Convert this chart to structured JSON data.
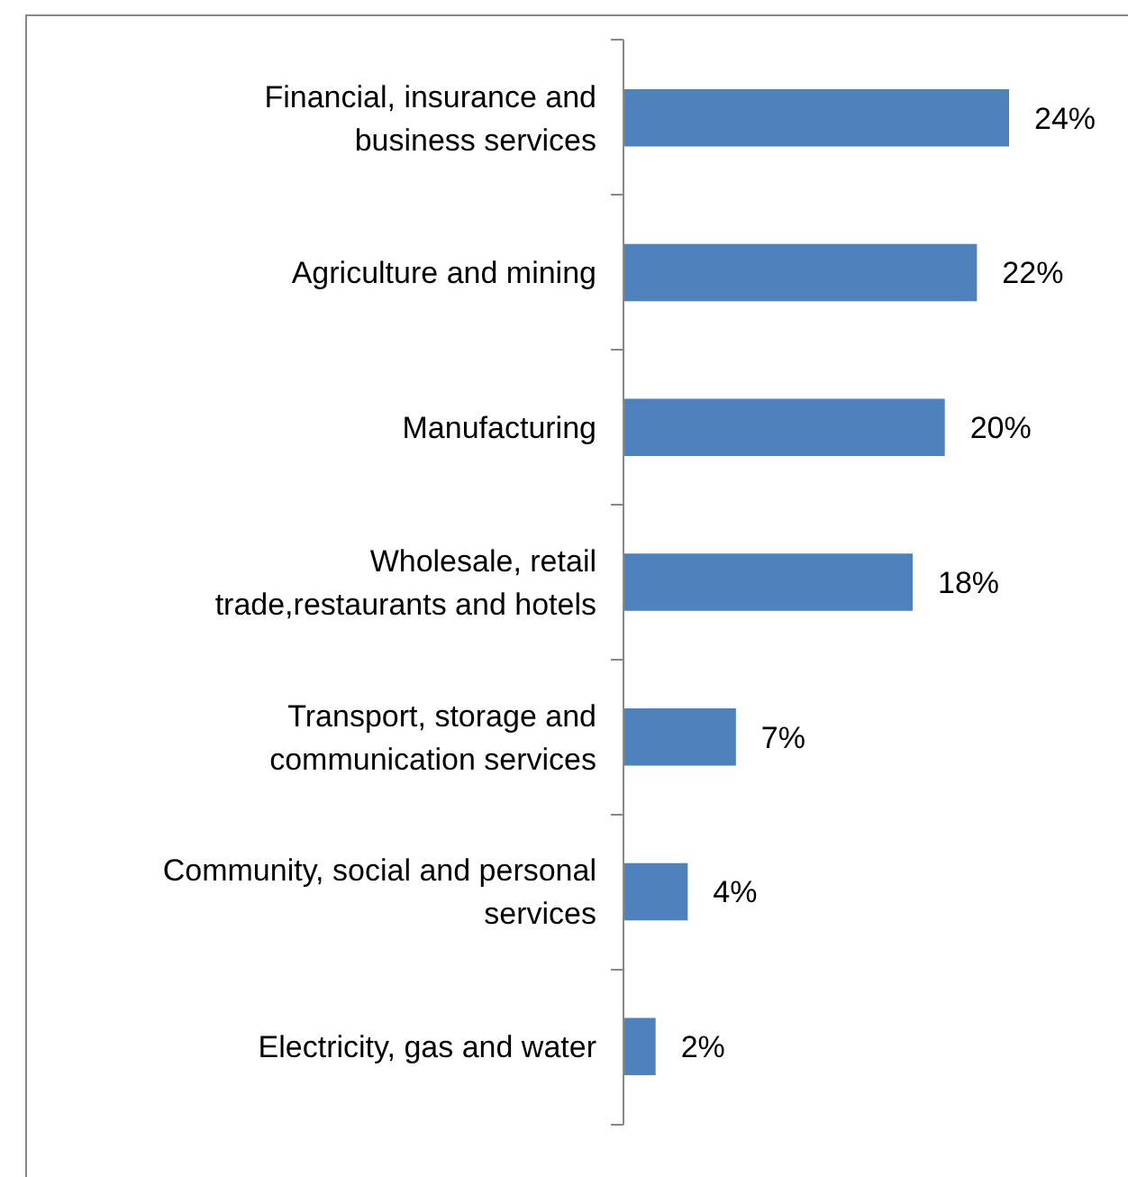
{
  "chart_data": {
    "type": "bar",
    "orientation": "horizontal",
    "categories": [
      "Financial, insurance and business services",
      "Agriculture and mining",
      "Manufacturing",
      "Wholesale, retail trade,restaurants and hotels",
      "Transport, storage and communication services",
      "Community, social and personal services",
      "Electricity, gas and water"
    ],
    "values": [
      24,
      22,
      20,
      18,
      7,
      4,
      2
    ],
    "value_labels": [
      "24%",
      "22%",
      "20%",
      "18%",
      "7%",
      "4%",
      "2%"
    ],
    "color": "#4f81bd"
  }
}
